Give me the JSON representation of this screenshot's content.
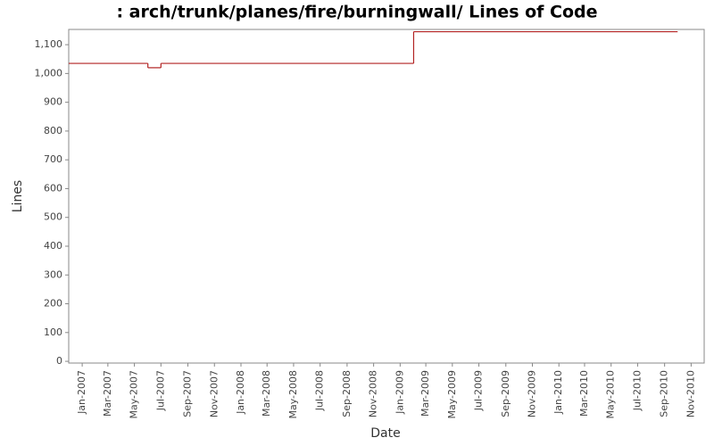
{
  "chart_data": {
    "type": "step",
    "title": ": arch/trunk/planes/fire/burningwall/ Lines of Code",
    "x_label": "Date",
    "y_label": "Lines",
    "x": [
      "2006-12",
      "2007-06",
      "2007-07",
      "2009-02",
      "2010-10"
    ],
    "values": [
      1035,
      1020,
      1035,
      1145,
      1145
    ],
    "color": "#b22222",
    "xlim": [
      "2006-12",
      "2010-12"
    ],
    "xticks": [
      {
        "value": "2007-01",
        "label": "Jan-2007"
      },
      {
        "value": "2007-03",
        "label": "Mar-2007"
      },
      {
        "value": "2007-05",
        "label": "May-2007"
      },
      {
        "value": "2007-07",
        "label": "Jul-2007"
      },
      {
        "value": "2007-09",
        "label": "Sep-2007"
      },
      {
        "value": "2007-11",
        "label": "Nov-2007"
      },
      {
        "value": "2008-01",
        "label": "Jan-2008"
      },
      {
        "value": "2008-03",
        "label": "Mar-2008"
      },
      {
        "value": "2008-05",
        "label": "May-2008"
      },
      {
        "value": "2008-07",
        "label": "Jul-2008"
      },
      {
        "value": "2008-09",
        "label": "Sep-2008"
      },
      {
        "value": "2008-11",
        "label": "Nov-2008"
      },
      {
        "value": "2009-01",
        "label": "Jan-2009"
      },
      {
        "value": "2009-03",
        "label": "Mar-2009"
      },
      {
        "value": "2009-05",
        "label": "May-2009"
      },
      {
        "value": "2009-07",
        "label": "Jul-2009"
      },
      {
        "value": "2009-09",
        "label": "Sep-2009"
      },
      {
        "value": "2009-11",
        "label": "Nov-2009"
      },
      {
        "value": "2010-01",
        "label": "Jan-2010"
      },
      {
        "value": "2010-03",
        "label": "Mar-2010"
      },
      {
        "value": "2010-05",
        "label": "May-2010"
      },
      {
        "value": "2010-07",
        "label": "Jul-2010"
      },
      {
        "value": "2010-09",
        "label": "Sep-2010"
      },
      {
        "value": "2010-11",
        "label": "Nov-2010"
      }
    ],
    "ylim": [
      -6,
      1153
    ],
    "yticks": [
      0,
      100,
      200,
      300,
      400,
      500,
      600,
      700,
      800,
      900,
      {
        "value": 1000,
        "label": "1,000"
      },
      {
        "value": 1100,
        "label": "1,100"
      }
    ],
    "grid": false
  }
}
